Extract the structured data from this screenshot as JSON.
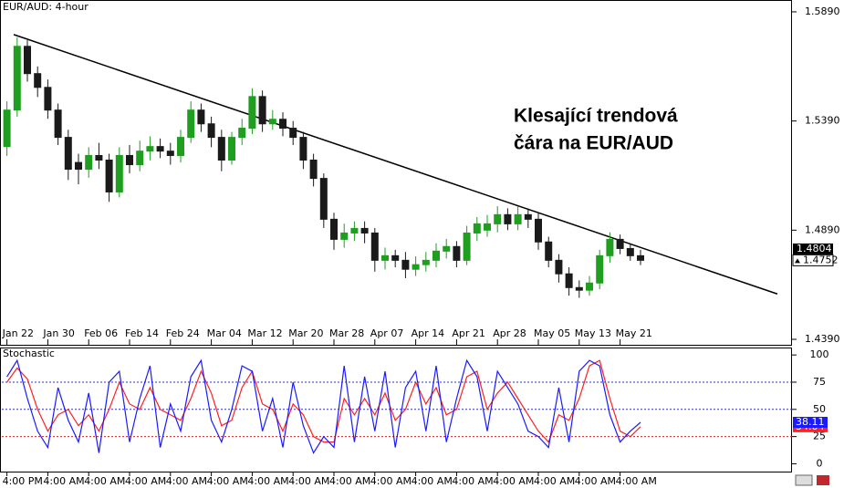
{
  "chart_data": [
    {
      "type": "candlestick",
      "title": "EUR/AUD: 4-hour",
      "annotation": [
        "Klesající trendová",
        "čára na EUR/AUD"
      ],
      "categories": [
        "Jan 22",
        null,
        null,
        null,
        "Jan 30",
        null,
        null,
        null,
        "Feb 06",
        null,
        null,
        null,
        "Feb 14",
        null,
        null,
        null,
        "Feb 24",
        null,
        null,
        null,
        "Mar 04",
        null,
        null,
        null,
        "Mar 12",
        null,
        null,
        null,
        "Mar 20",
        null,
        null,
        null,
        "Mar 28",
        null,
        null,
        null,
        "Apr 07",
        null,
        null,
        null,
        "Apr 14",
        null,
        null,
        null,
        "Apr 21",
        null,
        null,
        null,
        "Apr 28",
        null,
        null,
        null,
        "May 05",
        null,
        null,
        null,
        "May 13",
        null,
        null,
        null,
        "May 21",
        null,
        null
      ],
      "open": [
        1.5273,
        1.544,
        1.5732,
        1.5607,
        1.5544,
        1.544,
        1.5315,
        1.52,
        1.5169,
        1.5232,
        1.5211,
        1.5065,
        1.5232,
        1.519,
        1.5252,
        1.5273,
        1.5252,
        1.5232,
        1.5315,
        1.544,
        1.5377,
        1.5315,
        1.5211,
        1.5315,
        1.5357,
        1.5502,
        1.5377,
        1.5398,
        1.5357,
        1.5315,
        1.5211,
        1.5127,
        1.494,
        1.4848,
        1.4877,
        1.4898,
        1.4877,
        1.4752,
        1.4773,
        1.4752,
        1.4711,
        1.4732,
        1.4752,
        1.4794,
        1.4815,
        1.4752,
        1.4877,
        1.489,
        1.4919,
        1.4961,
        1.4919,
        1.4961,
        1.494,
        1.4836,
        1.4752,
        1.469,
        1.4627,
        1.4615,
        1.4648,
        1.4773,
        1.4848,
        1.4806,
        1.4773
      ],
      "high": [
        1.548,
        1.5773,
        1.576,
        1.564,
        1.558,
        1.547,
        1.535,
        1.524,
        1.527,
        1.529,
        1.524,
        1.527,
        1.528,
        1.53,
        1.532,
        1.531,
        1.529,
        1.535,
        1.548,
        1.547,
        1.541,
        1.535,
        1.534,
        1.54,
        1.554,
        1.553,
        1.544,
        1.543,
        1.539,
        1.534,
        1.524,
        1.515,
        1.497,
        1.492,
        1.493,
        1.493,
        1.49,
        1.481,
        1.48,
        1.479,
        1.477,
        1.479,
        1.483,
        1.485,
        1.484,
        1.491,
        1.495,
        1.496,
        1.5,
        1.499,
        1.5,
        1.499,
        1.497,
        1.486,
        1.478,
        1.472,
        1.466,
        1.468,
        1.48,
        1.488,
        1.487,
        1.483,
        1.48
      ],
      "low": [
        1.523,
        1.541,
        1.557,
        1.55,
        1.54,
        1.528,
        1.512,
        1.51,
        1.513,
        1.517,
        1.502,
        1.504,
        1.515,
        1.516,
        1.521,
        1.522,
        1.519,
        1.52,
        1.529,
        1.534,
        1.527,
        1.516,
        1.519,
        1.528,
        1.533,
        1.534,
        1.535,
        1.532,
        1.528,
        1.517,
        1.509,
        1.49,
        1.48,
        1.481,
        1.484,
        1.483,
        1.47,
        1.471,
        1.472,
        1.467,
        1.468,
        1.47,
        1.472,
        1.476,
        1.472,
        1.473,
        1.484,
        1.486,
        1.488,
        1.489,
        1.489,
        1.49,
        1.48,
        1.472,
        1.465,
        1.459,
        1.458,
        1.459,
        1.462,
        1.474,
        1.478,
        1.475,
        1.473
      ],
      "close": [
        1.544,
        1.5732,
        1.5607,
        1.5544,
        1.544,
        1.5315,
        1.5169,
        1.5169,
        1.5232,
        1.5211,
        1.5065,
        1.5232,
        1.519,
        1.5252,
        1.5273,
        1.5252,
        1.5232,
        1.5315,
        1.544,
        1.5377,
        1.5315,
        1.5211,
        1.5315,
        1.5357,
        1.5502,
        1.5377,
        1.5398,
        1.5357,
        1.5315,
        1.5211,
        1.5127,
        1.494,
        1.4848,
        1.4877,
        1.4898,
        1.4877,
        1.4752,
        1.4773,
        1.4752,
        1.4711,
        1.4732,
        1.4752,
        1.4794,
        1.4815,
        1.4752,
        1.4877,
        1.4919,
        1.4919,
        1.4961,
        1.4919,
        1.4961,
        1.494,
        1.4836,
        1.4752,
        1.469,
        1.4627,
        1.4615,
        1.4648,
        1.4773,
        1.4848,
        1.4806,
        1.4773,
        1.4752
      ],
      "up_color": "#1f9e1f",
      "down_color": "#1a1a1a",
      "xlim": [
        -0.5,
        76.82
      ],
      "ylim": [
        1.4365,
        1.594
      ],
      "yticks": [
        {
          "value": 1.589,
          "label": "1.5890"
        },
        {
          "value": 1.539,
          "label": "1.5390"
        },
        {
          "value": 1.489,
          "label": "1.4890"
        },
        {
          "value": 1.439,
          "label": "1.4390"
        }
      ],
      "bid": 1.4804,
      "trendline": {
        "x": [
          0.66,
          75.39
        ],
        "y": [
          1.5786,
          1.4598
        ],
        "color": "#000000"
      }
    },
    {
      "type": "line",
      "title": "Stochastic",
      "categories": [
        "4:00 PM",
        null,
        null,
        null,
        "4:00 AM",
        null,
        null,
        null,
        "4:00 AM",
        null,
        null,
        null,
        "4:00 AM",
        null,
        null,
        null,
        "4:00 AM",
        null,
        null,
        null,
        "4:00 AM",
        null,
        null,
        null,
        "4:00 AM",
        null,
        null,
        null,
        "4:00 AM",
        null,
        null,
        null,
        "4:00 AM",
        null,
        null,
        null,
        "4:00 AM",
        null,
        null,
        null,
        "4:00 AM",
        null,
        null,
        null,
        "4:00 AM",
        null,
        null,
        null,
        "4:00 AM",
        null,
        null,
        null,
        "4:00 AM",
        null,
        null,
        null,
        "4:00 AM",
        null,
        null,
        null,
        "4:00 AM",
        null,
        null
      ],
      "series": [
        {
          "color": "#ff2020",
          "values": [
            75,
            88,
            78,
            50,
            30,
            45,
            50,
            35,
            45,
            30,
            50,
            75,
            55,
            50,
            70,
            50,
            45,
            40,
            60,
            85,
            65,
            35,
            40,
            70,
            85,
            55,
            50,
            30,
            55,
            45,
            25,
            20,
            20,
            60,
            45,
            60,
            45,
            65,
            40,
            50,
            75,
            55,
            70,
            45,
            50,
            80,
            85,
            50,
            65,
            75,
            60,
            45,
            30,
            20,
            45,
            40,
            60,
            90,
            95,
            60,
            30,
            25,
            34.04
          ]
        },
        {
          "color": "#1a1aff",
          "values": [
            80,
            95,
            60,
            30,
            15,
            70,
            40,
            20,
            65,
            10,
            75,
            85,
            20,
            60,
            90,
            15,
            55,
            30,
            80,
            95,
            40,
            20,
            50,
            90,
            85,
            30,
            60,
            15,
            75,
            35,
            10,
            25,
            15,
            90,
            20,
            80,
            30,
            85,
            15,
            70,
            85,
            30,
            90,
            20,
            60,
            95,
            80,
            30,
            85,
            70,
            55,
            30,
            25,
            15,
            70,
            20,
            85,
            95,
            90,
            45,
            20,
            30,
            38.11
          ]
        }
      ],
      "xlim": [
        -0.5,
        76.82
      ],
      "ylim": [
        -8,
        106
      ],
      "yticks": [
        0,
        25,
        50,
        75,
        100
      ],
      "levels": [
        75,
        50,
        25
      ],
      "level_colors": [
        "#3030c0",
        "#3030c0",
        "#d02020"
      ]
    }
  ]
}
